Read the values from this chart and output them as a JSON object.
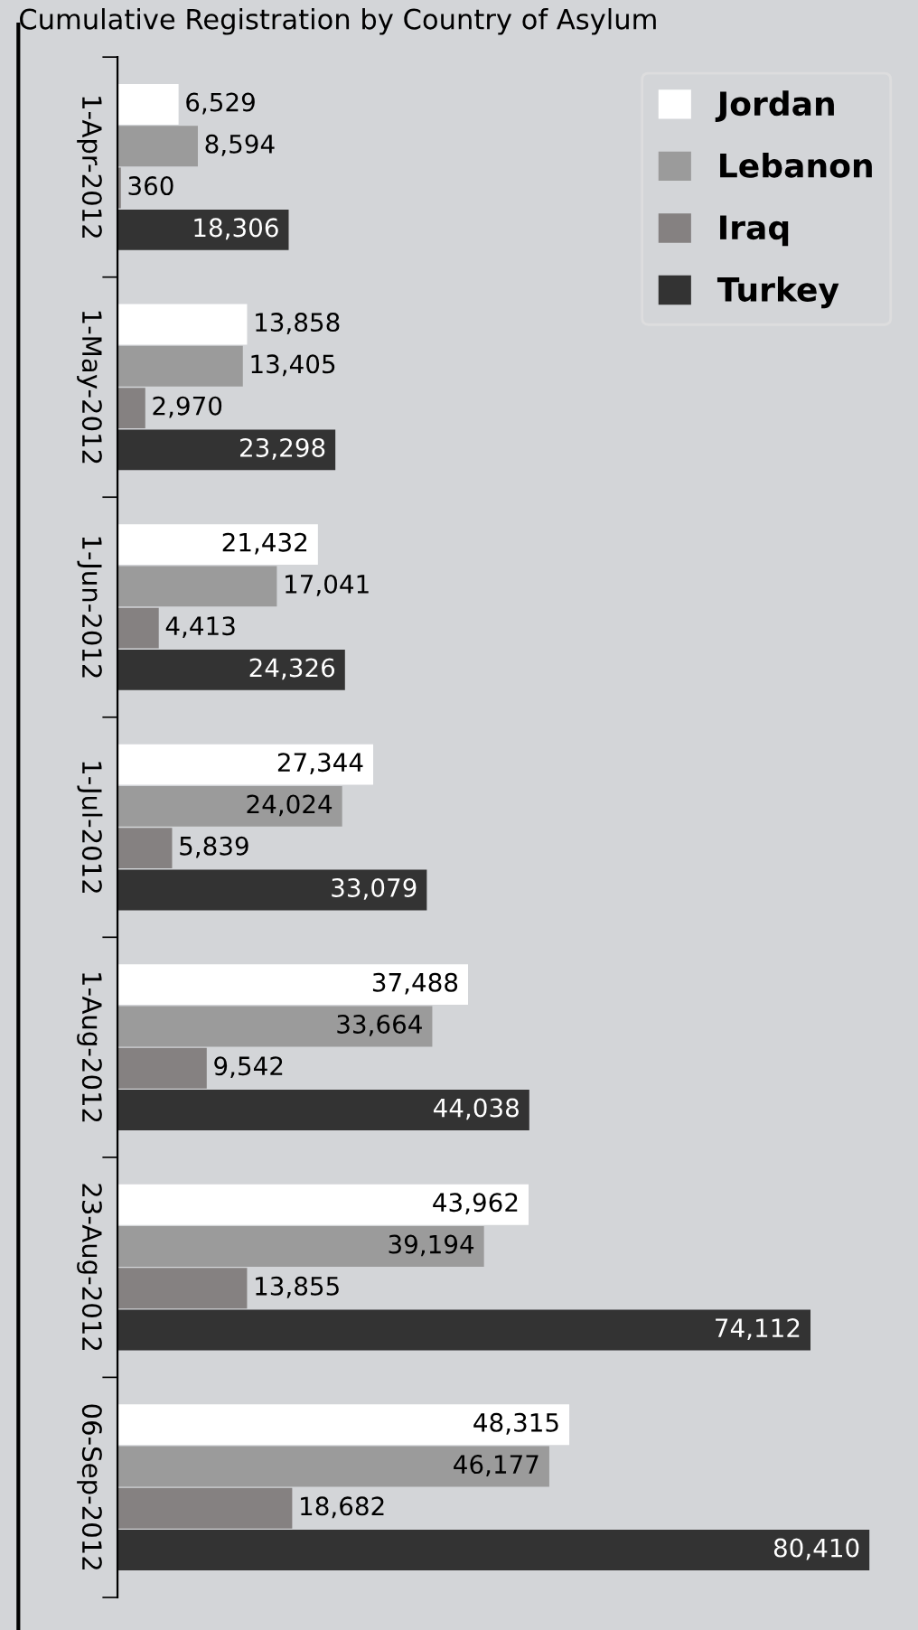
{
  "chart_data": {
    "type": "bar",
    "orientation": "horizontal",
    "title": "Cumulative Registration by Country of Asylum",
    "categories": [
      "1-Apr-2012",
      "1-May-2012",
      "1-Jun-2012",
      "1-Jul-2012",
      "1-Aug-2012",
      "23-Aug-2012",
      "06-Sep-2012"
    ],
    "series": [
      {
        "name": "Jordan",
        "color": "#ffffff",
        "values": [
          6529,
          13858,
          21432,
          27344,
          37488,
          43962,
          48315
        ],
        "value_labels": [
          "6,529",
          "13,858",
          "21,432",
          "27,344",
          "37,488",
          "43,962",
          "48,315"
        ]
      },
      {
        "name": "Lebanon",
        "color": "#9b9b9b",
        "values": [
          8594,
          13405,
          17041,
          24024,
          33664,
          39194,
          46177
        ],
        "value_labels": [
          "8,594",
          "13,405",
          "17,041",
          "24,024",
          "33,664",
          "39,194",
          "46,177"
        ]
      },
      {
        "name": "Iraq",
        "color": "#858181",
        "values": [
          360,
          2970,
          4413,
          5839,
          9542,
          13855,
          18682
        ],
        "value_labels": [
          "360",
          "2,970",
          "4,413",
          "5,839",
          "9,542",
          "13,855",
          "18,682"
        ]
      },
      {
        "name": "Turkey",
        "color": "#333333",
        "values": [
          18306,
          23298,
          24326,
          33079,
          44038,
          74112,
          80410
        ],
        "value_labels": [
          "18,306",
          "23,298",
          "24,326",
          "33,079",
          "44,038",
          "74,112",
          "80,410"
        ]
      }
    ],
    "tick_labels": "y",
    "legend": "top right",
    "grid": false
  }
}
